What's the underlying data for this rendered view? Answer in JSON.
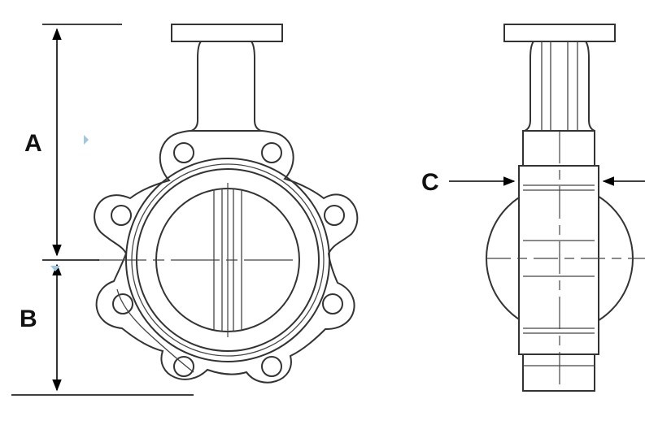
{
  "dimensions": {
    "a": {
      "label": "A"
    },
    "b": {
      "label": "B"
    },
    "c": {
      "label": "C"
    }
  },
  "colors": {
    "line": "#333333",
    "dimension": "#000000",
    "accent_marker": "#9ec7e6"
  }
}
